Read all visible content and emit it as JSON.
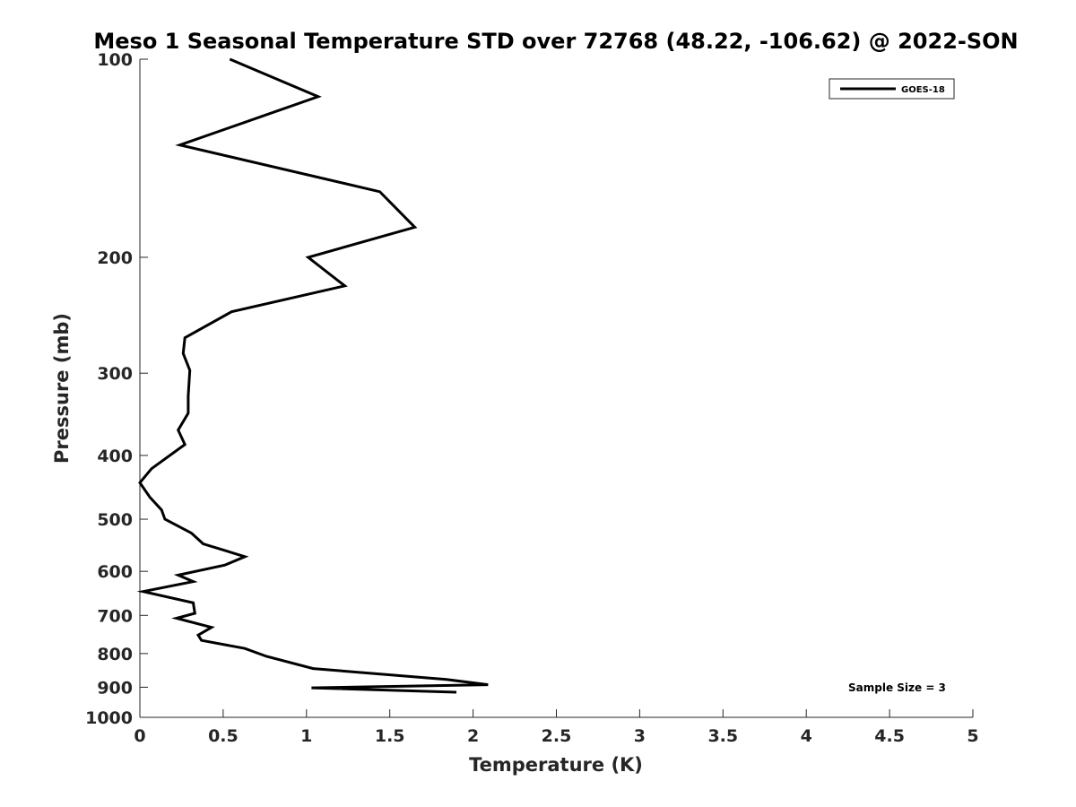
{
  "chart_data": {
    "type": "line",
    "title": "Meso 1 Seasonal Temperature STD over 72768 (48.22, -106.62) @ 2022-SON",
    "xlabel": "Temperature (K)",
    "ylabel": "Pressure (mb)",
    "xlim": [
      0,
      5
    ],
    "ylim": [
      100,
      1000
    ],
    "y_scale": "log",
    "y_reversed": true,
    "x_ticks": [
      0,
      0.5,
      1,
      1.5,
      2,
      2.5,
      3,
      3.5,
      4,
      4.5,
      5
    ],
    "x_tick_labels": [
      "0",
      "0.5",
      "1",
      "1.5",
      "2",
      "2.5",
      "3",
      "3.5",
      "4",
      "4.5",
      "5"
    ],
    "y_ticks": [
      100,
      200,
      300,
      400,
      500,
      600,
      700,
      800,
      900,
      1000
    ],
    "y_tick_labels": [
      "100",
      "200",
      "300",
      "400",
      "500",
      "600",
      "700",
      "800",
      "900",
      "1000"
    ],
    "grid": false,
    "legend_position": "top-right",
    "line_color": "#000000",
    "annotation": "Sample Size = 3",
    "series": [
      {
        "name": "GOES-18",
        "x": [
          0.54,
          1.07,
          0.24,
          1.44,
          1.65,
          1.01,
          1.23,
          0.55,
          0.27,
          0.26,
          0.3,
          0.29,
          0.29,
          0.23,
          0.27,
          0.07,
          0.0,
          0.06,
          0.13,
          0.15,
          0.31,
          0.38,
          0.63,
          0.51,
          0.23,
          0.32,
          0.02,
          0.32,
          0.33,
          0.22,
          0.43,
          0.35,
          0.37,
          0.63,
          0.76,
          1.04,
          1.84,
          2.09,
          1.03,
          1.9
        ],
        "y": [
          100,
          114,
          135,
          159,
          180,
          200,
          221,
          242,
          265,
          280,
          297,
          325,
          345,
          366,
          385,
          419,
          440,
          463,
          484,
          500,
          525,
          545,
          570,
          587,
          608,
          622,
          644,
          670,
          695,
          707,
          730,
          750,
          764,
          786,
          808,
          843,
          876,
          892,
          902,
          916
        ]
      }
    ]
  }
}
